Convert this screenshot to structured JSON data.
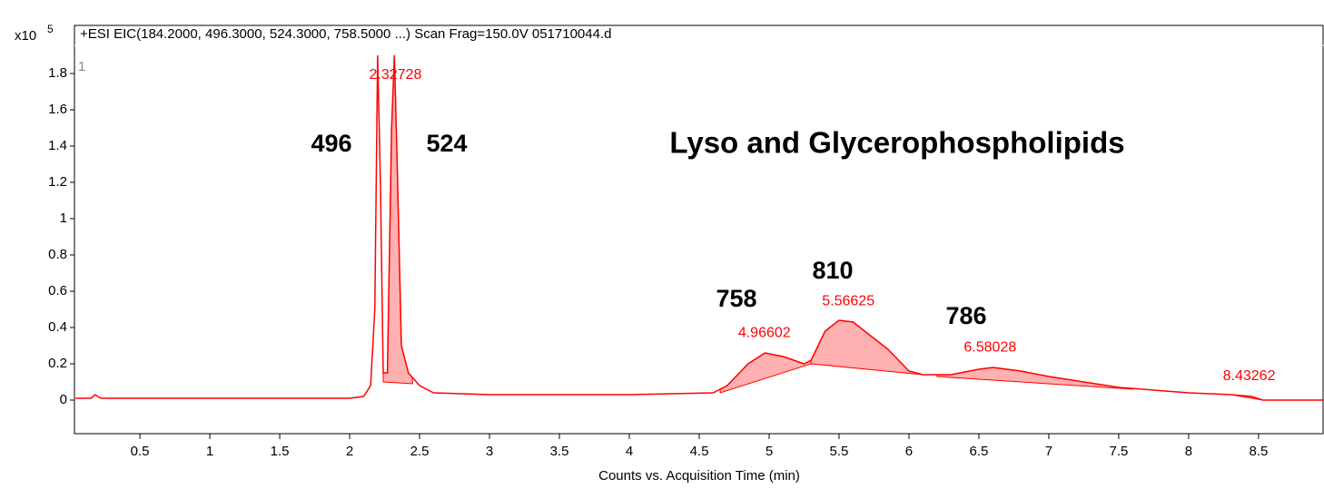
{
  "chart_data": {
    "type": "line",
    "header": "+ESI EIC(184.2000, 496.3000, 524.3000, 758.5000 ...) Scan Frag=150.0V 051710044.d",
    "y_multiplier": "x10",
    "y_exponent": "5",
    "trace_index": "1",
    "xlabel": "Counts vs. Acquisition Time (min)",
    "annotations": [
      "496",
      "524",
      "758",
      "810",
      "786",
      "Lyso and Glycerophospholipids"
    ],
    "xlim": [
      0.032,
      8.968
    ],
    "ylim": [
      -0.185,
      2.065
    ],
    "xticks": [
      0.5,
      1,
      1.5,
      2,
      2.5,
      3,
      3.5,
      4,
      4.5,
      5,
      5.5,
      6,
      6.5,
      7,
      7.5,
      8,
      8.5
    ],
    "yticks": [
      0,
      0.2,
      0.4,
      0.6,
      0.8,
      1,
      1.2,
      1.4,
      1.6,
      1.8
    ],
    "series": [
      {
        "color": "#ff0000",
        "x": [
          0.04,
          0.15,
          0.18,
          0.22,
          1,
          2,
          2.1,
          2.15,
          2.18,
          2.2,
          2.22,
          2.24,
          2.27,
          2.3,
          2.32,
          2.34,
          2.37,
          2.42,
          2.5,
          2.6,
          3,
          3.5,
          4,
          4.6,
          4.7,
          4.85,
          4.97,
          5.1,
          5.25,
          5.3,
          5.4,
          5.5,
          5.6,
          5.7,
          5.85,
          6.0,
          6.1,
          6.3,
          6.5,
          6.6,
          6.8,
          7,
          7.5,
          8,
          8.3,
          8.45,
          8.53,
          8.96
        ],
        "values": [
          0.01,
          0.01,
          0.03,
          0.01,
          0.01,
          0.01,
          0.02,
          0.08,
          0.5,
          1.9,
          1.2,
          0.15,
          0.15,
          1.5,
          1.9,
          1.3,
          0.3,
          0.15,
          0.08,
          0.04,
          0.03,
          0.03,
          0.03,
          0.04,
          0.08,
          0.2,
          0.26,
          0.24,
          0.2,
          0.22,
          0.38,
          0.44,
          0.43,
          0.37,
          0.28,
          0.16,
          0.14,
          0.14,
          0.17,
          0.18,
          0.16,
          0.13,
          0.07,
          0.04,
          0.03,
          0.02,
          0.0,
          0.0
        ]
      }
    ],
    "peaks": [
      {
        "rt": 2.32728,
        "start": 2.24,
        "end": 2.45,
        "baseline": [
          0.1,
          0.09
        ]
      },
      {
        "rt": 4.96602,
        "start": 4.65,
        "end": 5.3,
        "baseline": [
          0.04,
          0.2
        ]
      },
      {
        "rt": 5.56625,
        "start": 5.3,
        "end": 6.1,
        "baseline": [
          0.2,
          0.14
        ]
      },
      {
        "rt": 6.58028,
        "start": 6.2,
        "end": 7.6,
        "baseline": [
          0.13,
          0.06
        ]
      },
      {
        "rt": 8.43262,
        "start": 8.3,
        "end": 8.53,
        "baseline": [
          0.03,
          0.0
        ]
      }
    ]
  }
}
